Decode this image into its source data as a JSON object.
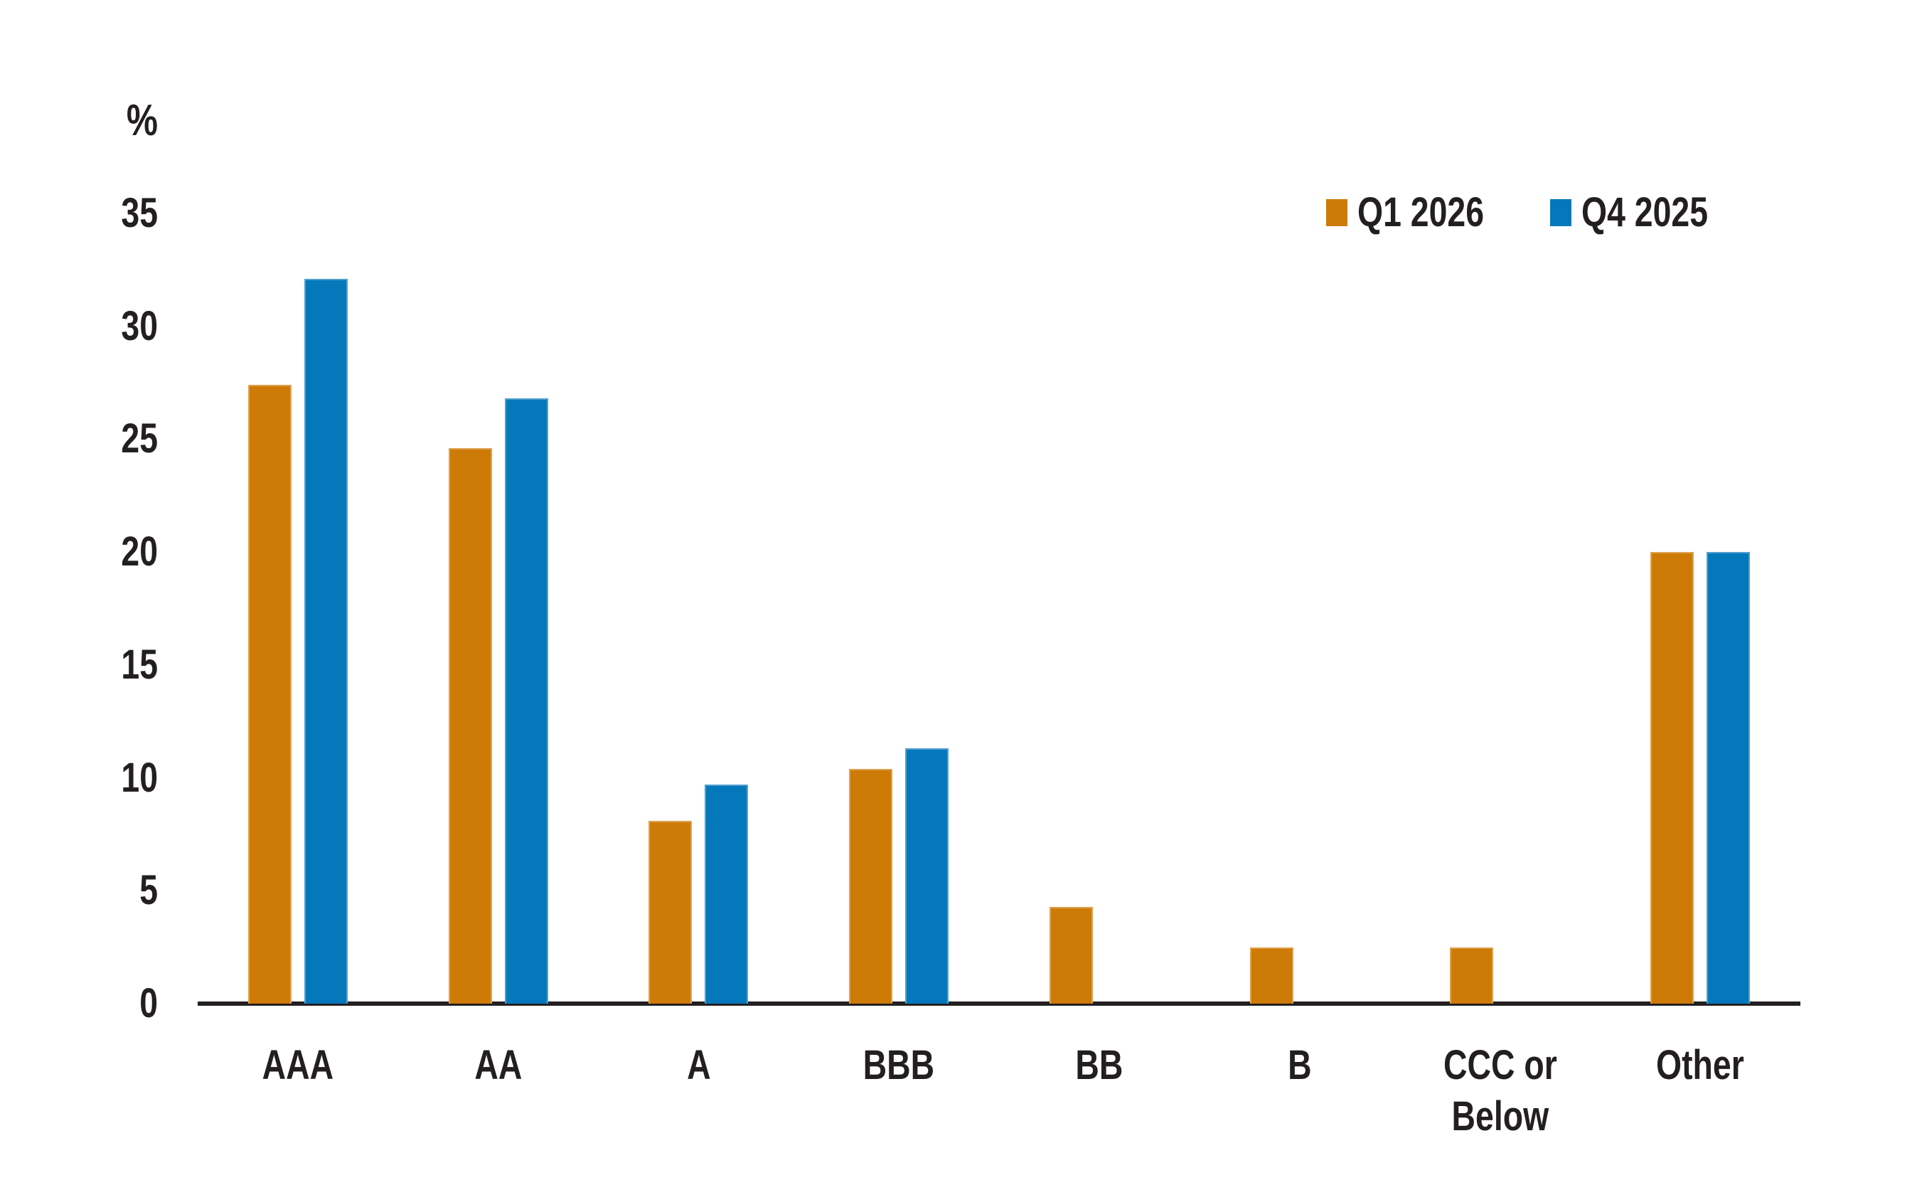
{
  "chart_data": {
    "type": "bar",
    "title": "",
    "ylabel": "%",
    "xlabel": "",
    "ylim": [
      0,
      35
    ],
    "yticks": [
      0,
      5,
      10,
      15,
      20,
      25,
      30,
      35
    ],
    "grid": false,
    "legend_position": "top-right",
    "categories": [
      "AAA",
      "AA",
      "A",
      "BBB",
      "BB",
      "B",
      "CCC or\nBelow",
      "Other"
    ],
    "series": [
      {
        "name": "Q1 2026",
        "color": "#CE7A06",
        "values": [
          27.4,
          24.6,
          8.1,
          10.4,
          4.3,
          2.5,
          2.5,
          20.0
        ]
      },
      {
        "name": "Q4 2025",
        "color": "#0578BC",
        "values": [
          32.1,
          26.8,
          9.7,
          11.3,
          0,
          0,
          0,
          20.0
        ]
      }
    ]
  },
  "colors": {
    "text": "#231F20",
    "axis": "#231F20",
    "background": "#FFFFFF",
    "series_q1_2026": "#CE7A06",
    "series_q4_2025": "#0578BC"
  }
}
